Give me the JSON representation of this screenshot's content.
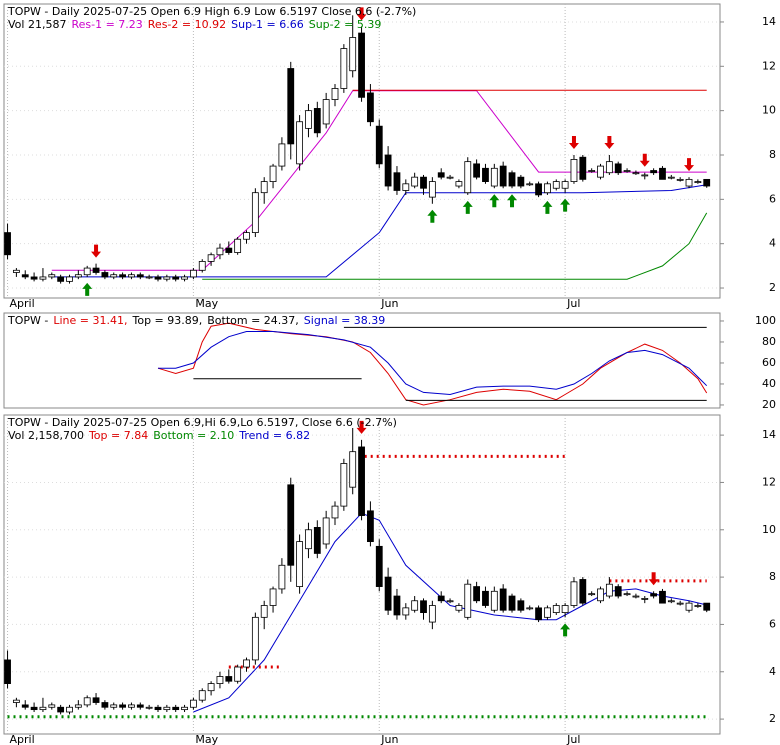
{
  "chart_data": [
    {
      "type": "candlestick",
      "title": "TOPW - Daily 2025-07-25 Open 6.9  High 6.9  Low 6.5197  Close 6.6 (-2.7%)",
      "volume_label": "Vol 21,587",
      "xlim": [
        -0.4,
        80.5
      ],
      "ylim": [
        1.55,
        14.81
      ],
      "xticks": [
        {
          "value": 0,
          "label": "April"
        },
        {
          "value": 21,
          "label": "May"
        },
        {
          "value": 42,
          "label": "Jun"
        },
        {
          "value": 63,
          "label": "Jul"
        }
      ],
      "yticks": [
        2,
        4,
        6,
        8,
        10,
        12,
        14
      ],
      "grid": true,
      "candles": {
        "open": [
          4.5,
          2.7,
          2.6,
          2.5,
          2.4,
          2.5,
          2.5,
          2.3,
          2.5,
          2.6,
          2.9,
          2.7,
          2.5,
          2.6,
          2.5,
          2.6,
          2.5,
          2.5,
          2.4,
          2.5,
          2.4,
          2.5,
          2.8,
          3.2,
          3.5,
          3.8,
          3.6,
          4.2,
          4.5,
          6.3,
          6.8,
          7.5,
          11.9,
          7.6,
          9.2,
          10.1,
          9.4,
          10.5,
          11.0,
          11.8,
          13.5,
          10.8,
          9.3,
          8.0,
          7.2,
          6.4,
          6.6,
          7.0,
          6.1,
          7.2,
          7.0,
          6.6,
          6.3,
          7.6,
          7.4,
          6.6,
          7.5,
          7.2,
          7.0,
          6.7,
          6.7,
          6.3,
          6.5,
          6.5,
          6.8,
          7.9,
          7.3,
          7.0,
          7.2,
          7.6,
          7.3,
          7.2,
          7.1,
          7.3,
          7.4,
          7.0,
          6.9,
          6.6,
          6.8,
          6.9
        ],
        "high": [
          4.9,
          2.9,
          2.8,
          2.7,
          2.9,
          2.7,
          2.6,
          2.6,
          2.8,
          3.0,
          3.1,
          2.8,
          2.7,
          2.7,
          2.7,
          2.7,
          2.6,
          2.6,
          2.6,
          2.6,
          2.6,
          2.9,
          3.3,
          3.6,
          4.0,
          4.1,
          4.3,
          4.6,
          6.5,
          7.0,
          7.6,
          8.8,
          12.2,
          9.8,
          10.3,
          10.4,
          10.8,
          11.2,
          13.0,
          14.3,
          13.8,
          11.2,
          9.6,
          8.4,
          7.5,
          6.9,
          7.2,
          7.1,
          7.0,
          7.4,
          7.1,
          6.9,
          7.9,
          7.8,
          7.6,
          7.6,
          7.7,
          7.3,
          7.1,
          6.8,
          6.8,
          6.8,
          6.9,
          6.9,
          8.0,
          8.0,
          7.4,
          7.6,
          8.0,
          7.7,
          7.4,
          7.3,
          7.2,
          7.4,
          7.5,
          7.1,
          7.0,
          7.0,
          6.9,
          6.9
        ],
        "low": [
          3.3,
          2.5,
          2.4,
          2.3,
          2.3,
          2.4,
          2.2,
          2.2,
          2.4,
          2.5,
          2.6,
          2.4,
          2.4,
          2.4,
          2.4,
          2.4,
          2.4,
          2.3,
          2.3,
          2.3,
          2.3,
          2.4,
          2.7,
          3.0,
          3.3,
          3.5,
          3.5,
          4.0,
          4.3,
          5.8,
          6.5,
          7.3,
          7.8,
          7.3,
          8.8,
          8.8,
          9.2,
          10.2,
          10.8,
          11.5,
          10.4,
          9.3,
          7.4,
          6.4,
          6.2,
          6.2,
          6.5,
          6.2,
          5.8,
          6.9,
          6.9,
          6.5,
          6.2,
          6.9,
          6.7,
          6.5,
          6.5,
          6.5,
          6.5,
          6.6,
          6.1,
          6.2,
          6.4,
          6.3,
          6.7,
          6.8,
          7.2,
          6.9,
          7.1,
          7.1,
          7.2,
          7.1,
          6.9,
          7.1,
          6.9,
          6.9,
          6.8,
          6.5,
          6.7,
          6.5197
        ],
        "close": [
          3.5,
          2.8,
          2.5,
          2.4,
          2.5,
          2.6,
          2.3,
          2.5,
          2.6,
          2.9,
          2.7,
          2.5,
          2.6,
          2.5,
          2.6,
          2.5,
          2.5,
          2.4,
          2.5,
          2.4,
          2.5,
          2.8,
          3.2,
          3.5,
          3.8,
          3.6,
          4.2,
          4.5,
          6.3,
          6.8,
          7.5,
          8.5,
          8.5,
          9.5,
          10.0,
          9.0,
          10.5,
          11.0,
          12.8,
          13.3,
          10.6,
          9.5,
          7.6,
          6.6,
          6.4,
          6.7,
          7.0,
          6.5,
          6.8,
          7.0,
          7.0,
          6.8,
          7.7,
          7.0,
          6.8,
          7.4,
          6.6,
          6.6,
          6.6,
          6.7,
          6.2,
          6.7,
          6.8,
          6.8,
          7.8,
          6.9,
          7.3,
          7.5,
          7.7,
          7.2,
          7.3,
          7.2,
          7.1,
          7.2,
          6.9,
          7.0,
          6.9,
          6.9,
          6.8,
          6.6
        ]
      },
      "buy_signals": [
        9,
        48,
        52,
        55,
        57,
        61,
        63
      ],
      "sell_signals": [
        10,
        40,
        64,
        68,
        72,
        77
      ],
      "series": [
        {
          "name": "Res-1 = 7.23",
          "color": "#cc00cc",
          "x": [
            5,
            22,
            28,
            33,
            36,
            39,
            53,
            60,
            79
          ],
          "values": [
            2.8,
            2.8,
            5.0,
            7.5,
            9.0,
            10.9,
            10.9,
            7.23,
            7.23
          ]
        },
        {
          "name": "Res-2 = 10.92",
          "color": "#dd0000",
          "x": [
            39,
            79
          ],
          "values": [
            10.92,
            10.92
          ]
        },
        {
          "name": "Sup-1 = 6.66",
          "color": "#0000cc",
          "x": [
            5,
            22,
            36,
            42,
            45,
            55,
            65,
            75,
            79
          ],
          "values": [
            2.5,
            2.5,
            2.5,
            4.5,
            6.3,
            6.3,
            6.3,
            6.4,
            6.66
          ]
        },
        {
          "name": "Sup-2 = 5.39",
          "color": "#008800",
          "x": [
            22,
            70,
            74,
            77,
            79
          ],
          "values": [
            2.4,
            2.4,
            3.0,
            4.0,
            5.39
          ]
        }
      ]
    },
    {
      "type": "line",
      "title": "TOPW -",
      "xlim": [
        -0.4,
        80.5
      ],
      "ylim": [
        17.1,
        107.6
      ],
      "yticks": [
        20,
        40,
        60,
        80,
        100
      ],
      "series": [
        {
          "name": "Line = 31.41,",
          "color": "#dd0000",
          "x": [
            17,
            19,
            21,
            22,
            23,
            25,
            28,
            32,
            36,
            39,
            41,
            43,
            45,
            47,
            50,
            53,
            56,
            59,
            62,
            63,
            65,
            67,
            70,
            72,
            74,
            76,
            78,
            79
          ],
          "values": [
            55,
            50,
            55,
            80,
            95,
            98,
            92,
            88,
            85,
            80,
            70,
            50,
            25,
            20,
            25,
            32,
            35,
            33,
            25,
            30,
            40,
            55,
            70,
            78,
            72,
            60,
            45,
            31.41
          ]
        },
        {
          "name": "Top = 93.89,",
          "color": "#000000",
          "x": [
            38,
            79
          ],
          "values": [
            93.89,
            93.89
          ]
        },
        {
          "name": "Bottom = 24.37,",
          "color": "#000000",
          "x": [
            21,
            40,
            null,
            45,
            79
          ],
          "values": [
            45,
            45,
            null,
            24.37,
            24.37
          ]
        },
        {
          "name": "Signal = 38.39",
          "color": "#0000cc",
          "x": [
            17,
            19,
            21,
            23,
            25,
            27,
            30,
            34,
            38,
            41,
            43,
            45,
            47,
            50,
            53,
            56,
            59,
            62,
            64,
            66,
            68,
            70,
            72,
            74,
            77,
            79
          ],
          "values": [
            55,
            55,
            60,
            75,
            85,
            90,
            90,
            87,
            82,
            75,
            60,
            40,
            32,
            30,
            37,
            38,
            38,
            35,
            40,
            50,
            62,
            70,
            72,
            68,
            55,
            38.39
          ]
        }
      ]
    },
    {
      "type": "candlestick",
      "title": "TOPW - Daily 2025-07-25 Open 6.9,Hi 6.9,Lo 6.5197, Close 6.6 (-2.7%)",
      "volume_label": "Vol 2,158,700",
      "xlim": [
        -0.4,
        80.5
      ],
      "ylim": [
        1.37,
        14.85
      ],
      "xticks": [
        {
          "value": 0,
          "label": "April"
        },
        {
          "value": 21,
          "label": "May"
        },
        {
          "value": 42,
          "label": "Jun"
        },
        {
          "value": 63,
          "label": "Jul"
        }
      ],
      "yticks": [
        2,
        4,
        6,
        8,
        10,
        12,
        14
      ],
      "grid": true,
      "buy_signals": [
        63
      ],
      "sell_signals": [
        40,
        73
      ],
      "series": [
        {
          "name": "Top = 7.84",
          "color": "#dd0000",
          "dotted": true,
          "x": [
            25,
            31,
            null,
            39,
            63,
            null,
            68,
            79
          ],
          "values": [
            4.2,
            4.2,
            null,
            13.1,
            13.1,
            null,
            7.84,
            7.84
          ]
        },
        {
          "name": "Bottom = 2.10",
          "color": "#008800",
          "dotted": true,
          "x": [
            0,
            79
          ],
          "values": [
            2.1,
            2.1
          ]
        },
        {
          "name": "Trend = 6.82",
          "color": "#0000cc",
          "x": [
            21,
            25,
            29,
            33,
            37,
            40,
            42,
            45,
            50,
            55,
            60,
            62,
            65,
            68,
            71,
            74,
            77,
            79
          ],
          "values": [
            2.3,
            2.9,
            4.5,
            7.0,
            9.5,
            10.7,
            10.4,
            8.5,
            6.8,
            6.4,
            6.2,
            6.2,
            6.8,
            7.4,
            7.5,
            7.2,
            7.0,
            6.82
          ]
        }
      ]
    }
  ]
}
